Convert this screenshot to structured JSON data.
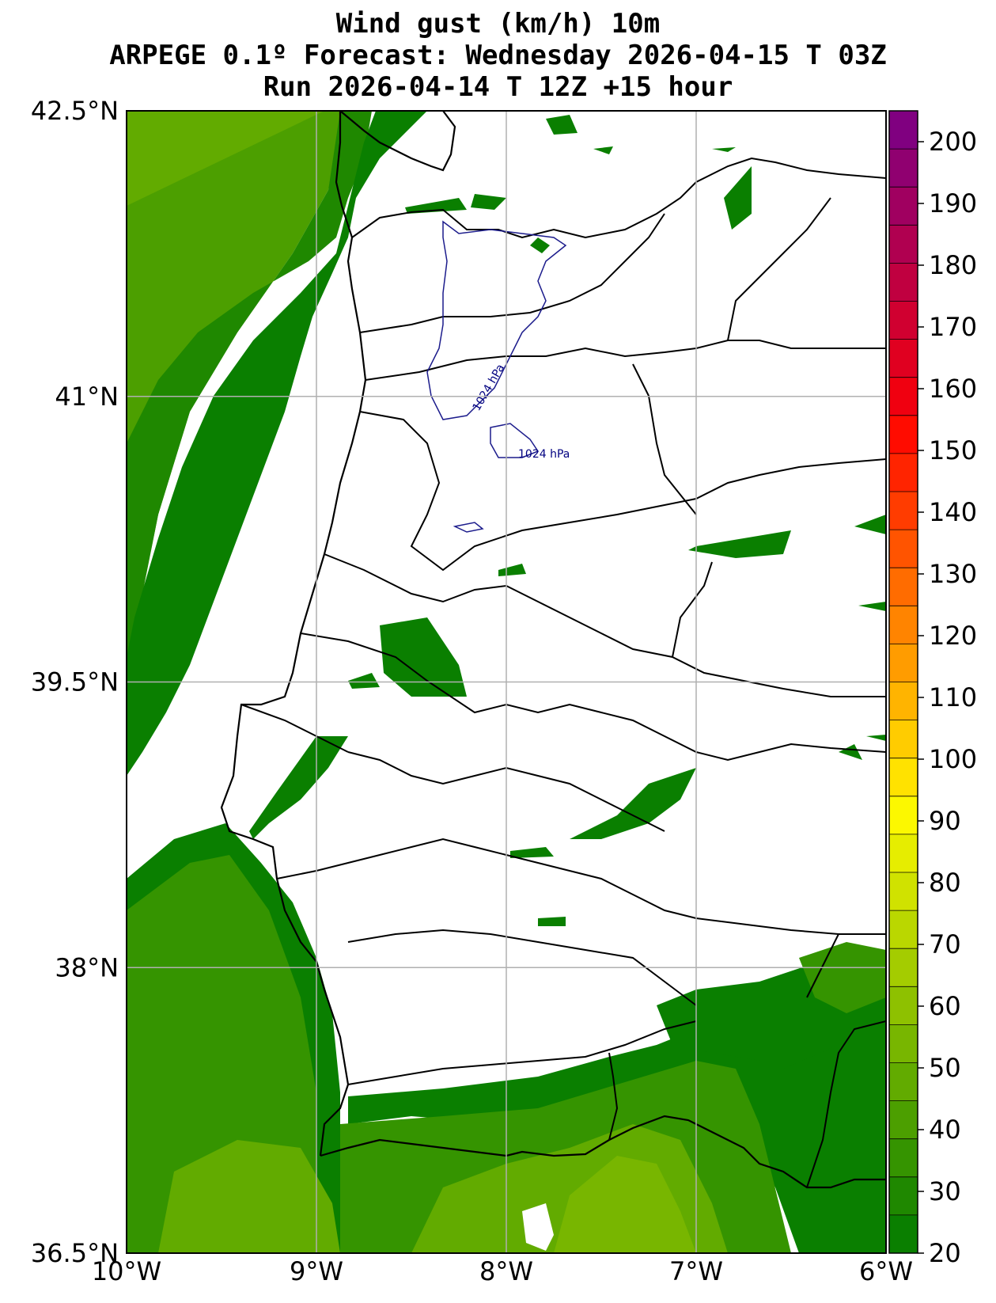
{
  "title": {
    "line1": "Wind gust (km/h) 10m",
    "line2": "ARPEGE 0.1º Forecast: Wednesday 2026-04-15 T 03Z",
    "line3": "Run 2026-04-14 T 12Z +15 hour"
  },
  "map": {
    "lon_range": [
      -10,
      -6
    ],
    "lat_range": [
      36.5,
      42.5
    ],
    "lon_ticks": [
      {
        "value": -10,
        "label": "10°W"
      },
      {
        "value": -9,
        "label": "9°W"
      },
      {
        "value": -8,
        "label": "8°W"
      },
      {
        "value": -7,
        "label": "7°W"
      },
      {
        "value": -6,
        "label": "6°W"
      }
    ],
    "lat_ticks": [
      {
        "value": 42.5,
        "label": "42.5°N"
      },
      {
        "value": 41,
        "label": "41°N"
      },
      {
        "value": 39.5,
        "label": "39.5°N"
      },
      {
        "value": 38,
        "label": "38°N"
      },
      {
        "value": 36.5,
        "label": "36.5°N"
      }
    ],
    "grid": true,
    "isobar_labels": [
      "1024 hPa",
      "1024 hPa"
    ]
  },
  "colorbar": {
    "min": 20,
    "max": 205,
    "labels": [
      "20",
      "30",
      "40",
      "50",
      "60",
      "70",
      "80",
      "90",
      "100",
      "110",
      "120",
      "130",
      "140",
      "150",
      "160",
      "170",
      "180",
      "190",
      "200"
    ],
    "colors": [
      "#0a7f00",
      "#1f8800",
      "#359400",
      "#4c9f00",
      "#62ab00",
      "#78b600",
      "#8ec100",
      "#a4cc00",
      "#bad700",
      "#d0e200",
      "#e6ed00",
      "#fcf800",
      "#ffe200",
      "#ffcc00",
      "#ffb400",
      "#ff9c00",
      "#ff8400",
      "#ff6c00",
      "#ff5400",
      "#ff3c00",
      "#ff2400",
      "#ff0c00",
      "#f00010",
      "#e00020",
      "#d00030",
      "#c00040",
      "#b00050",
      "#a00060",
      "#900070",
      "#800080"
    ],
    "palette": {
      "sea_light": "#62ab00",
      "sea_mid": "#359400",
      "sea_dark": "#0a7f00",
      "land": "#ffffff"
    }
  }
}
